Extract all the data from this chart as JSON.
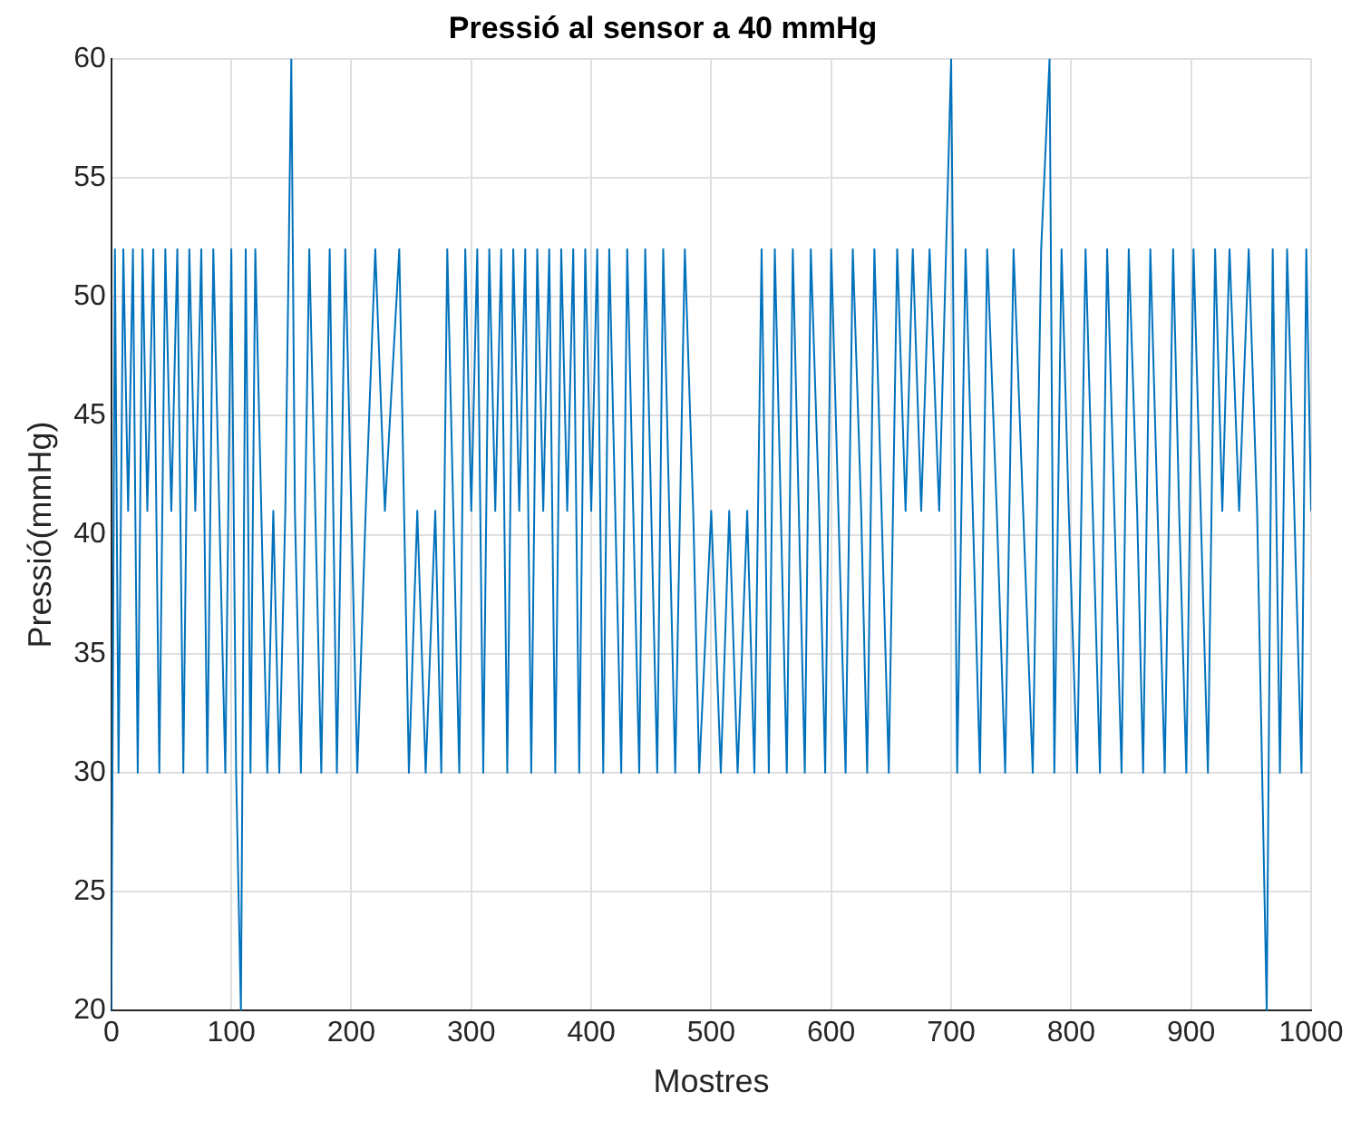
{
  "chart_data": {
    "type": "line",
    "title": "Pressió al sensor a 40 mmHg",
    "xlabel": "Mostres",
    "ylabel": "Pressió(mmHg)",
    "xlim": [
      0,
      1000
    ],
    "xticks": [
      0,
      100,
      200,
      300,
      400,
      500,
      600,
      700,
      800,
      900,
      1000
    ],
    "ylim": [
      20,
      60
    ],
    "yticks": [
      20,
      25,
      30,
      35,
      40,
      45,
      50,
      55,
      60
    ],
    "grid": true,
    "marker": "none",
    "line_style": "solid",
    "series": [
      {
        "color": "#0072bd",
        "x": [
          0,
          3,
          6,
          10,
          14,
          18,
          22,
          26,
          30,
          35,
          40,
          45,
          50,
          55,
          60,
          65,
          70,
          75,
          80,
          85,
          90,
          95,
          100,
          104,
          108,
          112,
          116,
          120,
          125,
          130,
          135,
          140,
          145,
          150,
          153,
          158,
          165,
          170,
          175,
          182,
          188,
          195,
          200,
          205,
          212,
          220,
          228,
          240,
          248,
          255,
          262,
          270,
          275,
          280,
          285,
          290,
          295,
          300,
          305,
          310,
          315,
          320,
          325,
          330,
          335,
          340,
          345,
          350,
          355,
          360,
          365,
          370,
          375,
          380,
          385,
          390,
          395,
          400,
          405,
          410,
          415,
          420,
          425,
          430,
          435,
          440,
          445,
          450,
          455,
          460,
          465,
          470,
          478,
          485,
          490,
          500,
          508,
          515,
          522,
          530,
          536,
          542,
          548,
          553,
          558,
          563,
          568,
          573,
          578,
          583,
          590,
          595,
          600,
          606,
          612,
          618,
          625,
          630,
          636,
          642,
          648,
          655,
          662,
          668,
          675,
          682,
          690,
          700,
          705,
          712,
          718,
          724,
          730,
          738,
          745,
          752,
          760,
          768,
          775,
          782,
          786,
          792,
          798,
          805,
          812,
          818,
          824,
          830,
          836,
          842,
          848,
          855,
          860,
          866,
          872,
          878,
          885,
          890,
          896,
          902,
          908,
          914,
          920,
          926,
          932,
          940,
          948,
          955,
          963,
          968,
          974,
          980,
          986,
          992,
          996,
          1000
        ],
        "values": [
          20,
          52,
          30,
          52,
          41,
          52,
          30,
          52,
          41,
          52,
          30,
          52,
          41,
          52,
          30,
          52,
          41,
          52,
          30,
          52,
          41,
          30,
          52,
          30,
          20,
          52,
          30,
          52,
          41,
          30,
          41,
          30,
          41,
          60,
          41,
          30,
          52,
          41,
          30,
          52,
          30,
          52,
          41,
          30,
          41,
          52,
          41,
          52,
          30,
          41,
          30,
          41,
          30,
          52,
          41,
          30,
          52,
          41,
          52,
          30,
          52,
          41,
          52,
          30,
          52,
          41,
          52,
          30,
          52,
          41,
          52,
          30,
          52,
          41,
          52,
          30,
          52,
          41,
          52,
          30,
          52,
          41,
          30,
          52,
          41,
          30,
          52,
          41,
          30,
          52,
          41,
          30,
          52,
          41,
          30,
          41,
          30,
          41,
          30,
          41,
          30,
          52,
          30,
          52,
          41,
          30,
          52,
          41,
          30,
          52,
          41,
          30,
          52,
          41,
          30,
          52,
          41,
          30,
          52,
          41,
          30,
          52,
          41,
          52,
          41,
          52,
          41,
          60,
          30,
          52,
          41,
          30,
          52,
          41,
          30,
          52,
          41,
          30,
          52,
          60,
          30,
          52,
          41,
          30,
          52,
          41,
          30,
          52,
          41,
          30,
          52,
          41,
          30,
          52,
          41,
          30,
          52,
          41,
          30,
          52,
          41,
          30,
          52,
          41,
          52,
          41,
          52,
          41,
          20,
          52,
          30,
          52,
          41,
          30,
          52,
          41
        ]
      }
    ]
  }
}
